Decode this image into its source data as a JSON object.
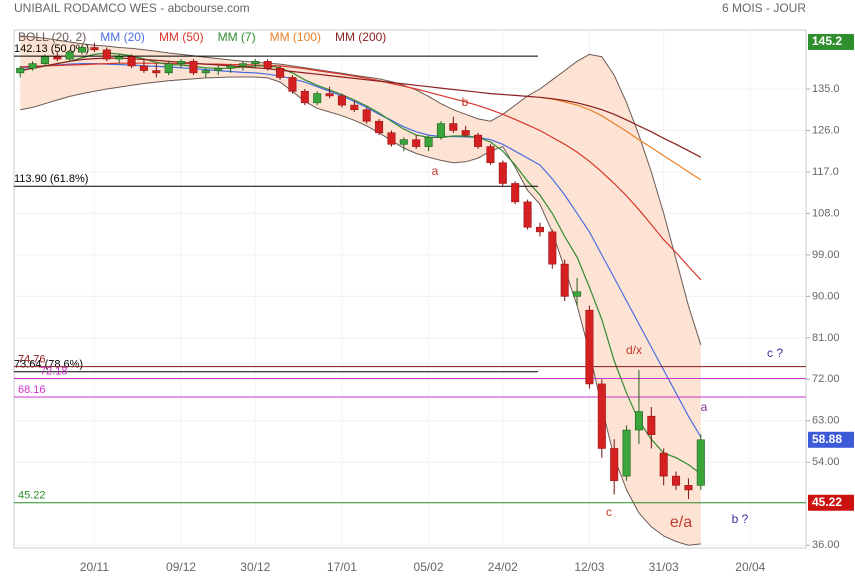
{
  "chart_data": {
    "type": "candlestick",
    "title": "UNIBAIL RODAMCO WES - abcbourse.com",
    "subtitle": "6 MOIS - JOUR",
    "categories": [
      null,
      null,
      null,
      null,
      null,
      null,
      "20/11",
      null,
      null,
      null,
      null,
      null,
      null,
      "09/12",
      null,
      null,
      null,
      null,
      null,
      "30/12",
      null,
      null,
      null,
      null,
      null,
      null,
      "17/01",
      null,
      null,
      null,
      null,
      null,
      null,
      "05/02",
      null,
      null,
      null,
      null,
      null,
      "24/02",
      null,
      null,
      null,
      null,
      null,
      null,
      "12/03",
      null,
      null,
      null,
      null,
      null,
      "31/03",
      null,
      null,
      null,
      null,
      null,
      null,
      "20/04",
      null,
      null,
      null,
      null
    ],
    "open": [
      138.5,
      139.5,
      140.5,
      142,
      141.5,
      143,
      144,
      143.5,
      141.5,
      142,
      140,
      139,
      138.5,
      140.5,
      141,
      138.5,
      139,
      139.5,
      140,
      140.5,
      141,
      139.5,
      137.5,
      134.5,
      132,
      134,
      133.5,
      131.5,
      130.5,
      128,
      125.5,
      123,
      124,
      122.5,
      124.5,
      127.5,
      126,
      125,
      122.5,
      119,
      114.5,
      110.5,
      105,
      104,
      97,
      90,
      87,
      71,
      57,
      51,
      61,
      64,
      56,
      51,
      49,
      49,
      null,
      null,
      null,
      null,
      null,
      null,
      null,
      null
    ],
    "high": [
      140,
      141,
      142.5,
      143,
      143.5,
      144.5,
      145,
      144,
      142.5,
      142.5,
      141.5,
      140.5,
      141,
      141.5,
      141.5,
      139.5,
      140,
      140.5,
      141,
      141.5,
      141.5,
      140,
      138,
      135,
      134.5,
      135.5,
      134,
      132.5,
      131,
      128.5,
      126,
      124.5,
      125,
      125,
      128,
      129,
      127,
      125.5,
      123,
      119.5,
      115,
      111,
      106,
      104.5,
      98,
      94,
      88,
      72,
      59,
      62,
      74,
      66,
      57,
      52,
      50.5,
      60,
      null,
      null,
      null,
      null,
      null,
      null,
      null,
      null
    ],
    "low": [
      137.5,
      139,
      140,
      141,
      141,
      142.5,
      143,
      141,
      140.5,
      139.5,
      138.5,
      137.5,
      138,
      139.5,
      138,
      137.5,
      138,
      138.5,
      139,
      139.5,
      139,
      137,
      134,
      131.5,
      131.5,
      133,
      131,
      130,
      127.5,
      125,
      122.5,
      121.5,
      122,
      121.5,
      124,
      125.5,
      124.5,
      122,
      118.5,
      114,
      110,
      104.5,
      103,
      96,
      89,
      88,
      70,
      55,
      47,
      50,
      58,
      57,
      49,
      48,
      46,
      48,
      null,
      null,
      null,
      null,
      null,
      null,
      null,
      null
    ],
    "close": [
      139.5,
      140.5,
      142,
      141.5,
      143,
      144,
      143.5,
      141.5,
      142,
      140,
      139,
      138.5,
      140.5,
      141,
      138.5,
      139,
      139.5,
      140,
      140.5,
      141,
      139.5,
      137.5,
      134.5,
      132,
      134,
      133.5,
      131.5,
      130.5,
      128,
      125.5,
      123,
      124,
      122.5,
      124.5,
      127.5,
      126,
      125,
      122.5,
      119,
      114.5,
      110.5,
      105,
      104,
      97,
      90,
      91,
      71,
      57,
      50,
      61,
      65,
      60,
      51,
      49,
      48,
      58.88,
      null,
      null,
      null,
      null,
      null,
      null,
      null,
      null
    ],
    "up_color": "#3aa53a",
    "down_color": "#d42020",
    "series": [
      {
        "name": "BOLL (20, 2)",
        "color": "#6b5a55",
        "fill": "#fde3d3",
        "upper": [
          146.5,
          146.3,
          146,
          145.6,
          145.2,
          144.8,
          144.5,
          144.3,
          144,
          143.8,
          143.5,
          143.2,
          142.8,
          142.5,
          142.2,
          141.9,
          141.6,
          141.3,
          141,
          140.8,
          140.6,
          140.4,
          140,
          139.6,
          139.2,
          138.8,
          138.4,
          138,
          137.6,
          137.2,
          136.6,
          135.8,
          134.8,
          133.4,
          131.8,
          130.5,
          129.5,
          128.5,
          128,
          129.5,
          131.5,
          133.5,
          135,
          137,
          139,
          141,
          142.5,
          142,
          138,
          132,
          125,
          117,
          108,
          98,
          88,
          79.5,
          null,
          null,
          null,
          null,
          null,
          null,
          null,
          null
        ],
        "lower": [
          130.5,
          131,
          131.8,
          132.6,
          133.4,
          134,
          134.5,
          135,
          135.4,
          135.8,
          136.2,
          136.5,
          136.8,
          137,
          137.2,
          137.4,
          137.5,
          137.6,
          137.6,
          137.6,
          137.4,
          136.5,
          134.5,
          132.3,
          130.8,
          130,
          129.2,
          128.2,
          127,
          125.5,
          123.8,
          122.2,
          121,
          120.2,
          119.5,
          119,
          119.2,
          120,
          121.5,
          122.5,
          118,
          113,
          110,
          104,
          96,
          88,
          78,
          66,
          55,
          48,
          43,
          40,
          38,
          36.8,
          36,
          36.3,
          null,
          null,
          null,
          null,
          null,
          null,
          null,
          null
        ]
      },
      {
        "name": "MM (20)",
        "color": "#4a6ee0",
        "values": [
          139.5,
          139.8,
          140,
          140.2,
          140.4,
          140.5,
          140.5,
          140.4,
          140.3,
          140.2,
          140,
          139.9,
          139.8,
          139.6,
          139.4,
          139.2,
          139,
          138.8,
          138.6,
          138.5,
          138.2,
          137.8,
          137.2,
          136.5,
          135.5,
          134.5,
          133.5,
          132.3,
          131,
          129.5,
          128.2,
          126.8,
          125.7,
          125,
          124.7,
          124.7,
          124.6,
          124.5,
          124,
          123,
          121.5,
          120,
          118.5,
          115.5,
          112,
          108,
          104,
          99,
          94,
          89,
          84,
          79,
          74,
          69,
          64,
          59.5,
          null,
          null,
          null,
          null,
          null,
          null,
          null,
          null
        ]
      },
      {
        "name": "MM (50)",
        "color": "#d9362b",
        "values": [
          139.8,
          139.9,
          140,
          140.1,
          140.2,
          140.3,
          140.4,
          140.5,
          140.6,
          140.6,
          140.6,
          140.6,
          140.6,
          140.5,
          140.5,
          140.4,
          140.4,
          140.3,
          140.3,
          140.2,
          140.1,
          140,
          139.7,
          139.4,
          139,
          138.6,
          138.2,
          137.8,
          137.3,
          136.8,
          136.2,
          135.6,
          135,
          134.3,
          133.6,
          132.9,
          132.2,
          131.4,
          130.5,
          129.5,
          128.4,
          127.2,
          126,
          124.5,
          123,
          121.3,
          119.3,
          117,
          114.5,
          111.8,
          108.8,
          105.6,
          102.3,
          99.5,
          96.5,
          93.6,
          null,
          null,
          null,
          null,
          null,
          null,
          null,
          null
        ]
      },
      {
        "name": "MM (7)",
        "color": "#2f8a2f",
        "values": [
          139,
          139.5,
          140,
          140.5,
          141,
          141.8,
          142.5,
          142.8,
          142.6,
          142.2,
          141.5,
          140.8,
          140.3,
          140.2,
          139.9,
          139.6,
          139.5,
          139.5,
          139.8,
          140,
          140,
          139.6,
          138.5,
          137,
          135.8,
          134.8,
          133.8,
          132.6,
          131.3,
          129.8,
          128,
          126.3,
          125,
          124.5,
          124.5,
          124.8,
          124.8,
          124.5,
          123.5,
          121.5,
          118.5,
          115,
          112,
          108,
          103,
          98.5,
          92,
          85,
          76,
          69,
          63,
          59,
          56,
          55,
          53.5,
          51.5,
          null,
          null,
          null,
          null,
          null,
          null,
          null,
          null
        ]
      },
      {
        "name": "MM (100)",
        "color": "#e8822a",
        "values": [
          null,
          null,
          null,
          null,
          null,
          null,
          null,
          null,
          null,
          null,
          null,
          null,
          null,
          null,
          null,
          null,
          null,
          null,
          null,
          null,
          null,
          null,
          null,
          null,
          null,
          null,
          null,
          null,
          null,
          null,
          null,
          null,
          null,
          null,
          null,
          null,
          null,
          null,
          null,
          null,
          null,
          null,
          133.2,
          132.8,
          132.2,
          131.5,
          130.5,
          129.2,
          127.5,
          125.8,
          124,
          122.3,
          120.5,
          118.8,
          117,
          115.3,
          null,
          null,
          null,
          null,
          null,
          null,
          null,
          null
        ]
      },
      {
        "name": "MM (200)",
        "color": "#8b1f1f",
        "values": [
          139,
          139.5,
          140,
          140.5,
          141,
          141.4,
          141.6,
          141.7,
          141.7,
          141.6,
          141.4,
          141.2,
          141,
          140.8,
          140.6,
          140.4,
          140.2,
          140,
          139.8,
          139.6,
          139.4,
          139.1,
          138.8,
          138.5,
          138.2,
          137.9,
          137.6,
          137.3,
          137,
          136.7,
          136.4,
          136.1,
          135.8,
          135.5,
          135.2,
          134.9,
          134.6,
          134.3,
          134,
          133.8,
          133.6,
          133.4,
          133.2,
          132.9,
          132.5,
          132,
          131.3,
          130.5,
          129.5,
          128.3,
          127,
          125.7,
          124.3,
          123,
          121.6,
          120.2,
          null,
          null,
          null,
          null,
          null,
          null,
          null,
          null
        ]
      }
    ],
    "ylim": [
      35.4,
      147.8
    ],
    "yticks": [
      {
        "value": 135,
        "label": "135.0"
      },
      {
        "value": 126,
        "label": "126.0"
      },
      {
        "value": 117,
        "label": "117.0"
      },
      {
        "value": 108,
        "label": "108.0"
      },
      {
        "value": 99,
        "label": "99.00"
      },
      {
        "value": 90,
        "label": "90.00"
      },
      {
        "value": 81,
        "label": "81.00"
      },
      {
        "value": 72,
        "label": "72.00"
      },
      {
        "value": 63,
        "label": "63.00"
      },
      {
        "value": 54,
        "label": "54.00"
      },
      {
        "value": 36,
        "label": "36.00"
      }
    ],
    "grid": true,
    "levels": [
      {
        "value": 142.13,
        "label": "142.13 (50.0%)",
        "color": "#000000",
        "extent": "partial"
      },
      {
        "value": 113.9,
        "label": "113.90 (61.8%)",
        "color": "#000000",
        "extent": "partial"
      },
      {
        "value": 73.64,
        "label": "73.64 (78.6%)",
        "color": "#000000",
        "extent": "partial"
      },
      {
        "value": 74.76,
        "label": "74.76",
        "color": "#8b1a1a",
        "extent": "full"
      },
      {
        "value": 72.18,
        "label": "72.18",
        "color": "#cc33cc",
        "extent": "full"
      },
      {
        "value": 68.16,
        "label": "68.16",
        "color": "#cc33cc",
        "extent": "full"
      },
      {
        "value": 45.22,
        "label": "45.22",
        "color": "#2a8a2a",
        "extent": "full"
      }
    ],
    "price_labels": [
      {
        "value": 145.2,
        "color": "#2f8f2f"
      },
      {
        "value": 58.88,
        "color": "#3d5bd9"
      },
      {
        "value": 45.22,
        "color": "#cc1111"
      }
    ],
    "annotations": [
      {
        "text": "a",
        "color": "#c0392b"
      },
      {
        "text": "b",
        "color": "#c0392b"
      },
      {
        "text": "c",
        "color": "#c0392b"
      },
      {
        "text": "d/x",
        "color": "#c0392b"
      },
      {
        "text": "e/a",
        "color": "#c0392b"
      },
      {
        "text": "a",
        "color": "#7a3b8f"
      },
      {
        "text": "c ?",
        "color": "#333399"
      },
      {
        "text": "b ?",
        "color": "#333399"
      }
    ]
  }
}
